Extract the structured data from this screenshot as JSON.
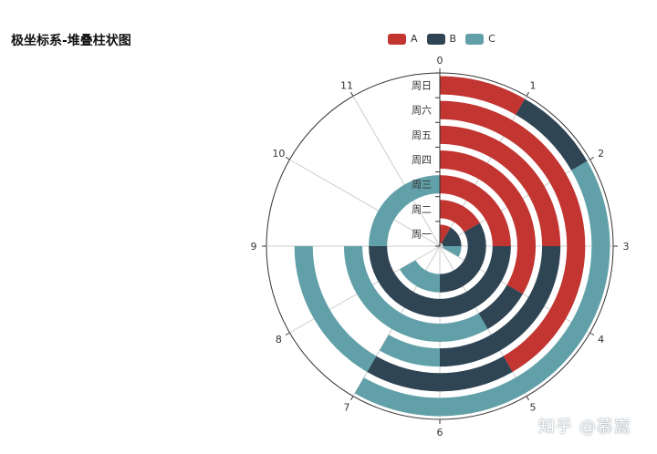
{
  "chart_data": {
    "type": "bar",
    "coordinate": "polar-stacked",
    "title": "极坐标系-堆叠柱状图",
    "angle_axis": {
      "min": 0,
      "max": 12,
      "ticks": [
        "0",
        "1",
        "2",
        "3",
        "4",
        "5",
        "6",
        "7",
        "8",
        "9",
        "10",
        "11"
      ]
    },
    "categories": [
      "周一",
      "周二",
      "周三",
      "周四",
      "周五",
      "周六",
      "周日"
    ],
    "series": [
      {
        "name": "A",
        "color": "#c23531",
        "values": [
          1,
          2,
          3,
          4,
          3,
          5,
          1
        ]
      },
      {
        "name": "B",
        "color": "#2f4554",
        "values": [
          2,
          4,
          6,
          1,
          3,
          2,
          1
        ]
      },
      {
        "name": "C",
        "color": "#61a0a8",
        "values": [
          1,
          2,
          3,
          4,
          1,
          2,
          5
        ]
      }
    ],
    "legend_position": "top-center",
    "grid": true
  },
  "watermark": "知乎 @慕嵩"
}
